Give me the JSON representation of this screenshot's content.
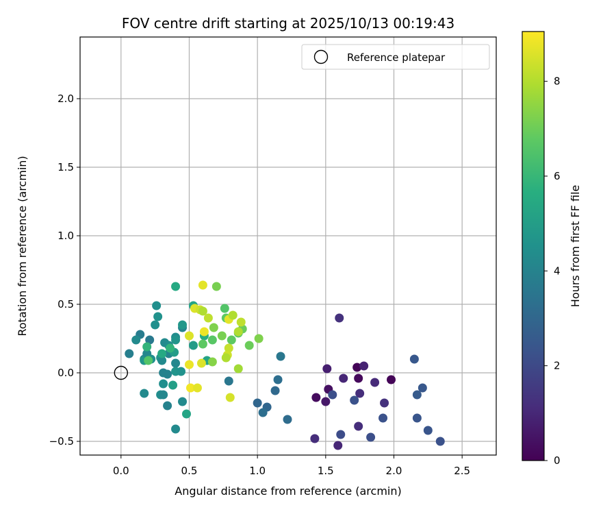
{
  "chart_data": {
    "type": "scatter",
    "title": "FOV centre drift starting at 2025/10/13 00:19:43",
    "xlabel": "Angular distance from reference (arcmin)",
    "ylabel": "Rotation from reference (arcmin)",
    "xlim": [
      -0.3,
      2.75
    ],
    "ylim": [
      -0.6,
      2.45
    ],
    "xticks": [
      0.0,
      0.5,
      1.0,
      1.5,
      2.0,
      2.5
    ],
    "xtick_labels": [
      "0.0",
      "0.5",
      "1.0",
      "1.5",
      "2.0",
      "2.5"
    ],
    "yticks": [
      -0.5,
      0.0,
      0.5,
      1.0,
      1.5,
      2.0
    ],
    "ytick_labels": [
      "−0.5",
      "0.0",
      "0.5",
      "1.0",
      "1.5",
      "2.0"
    ],
    "grid": true,
    "legend": {
      "position": "top-right",
      "entries": [
        "Reference platepar"
      ]
    },
    "reference_point": {
      "x": 0.0,
      "y": 0.0,
      "label": "Reference platepar"
    },
    "colorbar": {
      "label": "Hours from first FF file",
      "colormap": "viridis",
      "range": [
        0,
        9.05
      ],
      "ticks": [
        0,
        2,
        4,
        6,
        8
      ],
      "tick_labels": [
        "0",
        "2",
        "4",
        "6",
        "8"
      ]
    },
    "points": [
      {
        "x": 1.6,
        "y": 0.4,
        "h": 1.3
      },
      {
        "x": 1.51,
        "y": 0.03,
        "h": 0.8
      },
      {
        "x": 1.52,
        "y": -0.12,
        "h": 0.4
      },
      {
        "x": 1.43,
        "y": -0.18,
        "h": 0.3
      },
      {
        "x": 1.5,
        "y": -0.21,
        "h": 0.6
      },
      {
        "x": 1.55,
        "y": -0.16,
        "h": 2.2
      },
      {
        "x": 1.63,
        "y": -0.04,
        "h": 1.0
      },
      {
        "x": 1.73,
        "y": 0.04,
        "h": 0.1
      },
      {
        "x": 1.78,
        "y": 0.05,
        "h": 0.9
      },
      {
        "x": 1.74,
        "y": -0.04,
        "h": 0.2
      },
      {
        "x": 1.75,
        "y": -0.15,
        "h": 1.2
      },
      {
        "x": 1.71,
        "y": -0.2,
        "h": 2.3
      },
      {
        "x": 1.86,
        "y": -0.07,
        "h": 1.1
      },
      {
        "x": 1.98,
        "y": -0.05,
        "h": 0.1
      },
      {
        "x": 1.93,
        "y": -0.22,
        "h": 1.3
      },
      {
        "x": 1.74,
        "y": -0.39,
        "h": 1.2
      },
      {
        "x": 1.83,
        "y": -0.47,
        "h": 2.2
      },
      {
        "x": 1.92,
        "y": -0.33,
        "h": 2.3
      },
      {
        "x": 1.61,
        "y": -0.45,
        "h": 2.1
      },
      {
        "x": 1.42,
        "y": -0.48,
        "h": 1.2
      },
      {
        "x": 1.59,
        "y": -0.53,
        "h": 1.0
      },
      {
        "x": 2.15,
        "y": 0.1,
        "h": 2.5
      },
      {
        "x": 2.21,
        "y": -0.11,
        "h": 2.5
      },
      {
        "x": 2.17,
        "y": -0.16,
        "h": 2.6
      },
      {
        "x": 2.17,
        "y": -0.33,
        "h": 2.4
      },
      {
        "x": 2.25,
        "y": -0.42,
        "h": 2.4
      },
      {
        "x": 2.34,
        "y": -0.5,
        "h": 2.3
      },
      {
        "x": 1.17,
        "y": 0.12,
        "h": 3.6
      },
      {
        "x": 1.15,
        "y": -0.05,
        "h": 3.3
      },
      {
        "x": 1.13,
        "y": -0.13,
        "h": 3.1
      },
      {
        "x": 1.0,
        "y": -0.22,
        "h": 3.0
      },
      {
        "x": 1.07,
        "y": -0.25,
        "h": 3.0
      },
      {
        "x": 1.04,
        "y": -0.29,
        "h": 3.3
      },
      {
        "x": 1.22,
        "y": -0.34,
        "h": 3.2
      },
      {
        "x": 0.79,
        "y": -0.06,
        "h": 3.6
      },
      {
        "x": 0.06,
        "y": 0.14,
        "h": 3.9
      },
      {
        "x": 0.14,
        "y": 0.28,
        "h": 3.8
      },
      {
        "x": 0.11,
        "y": 0.24,
        "h": 4.3
      },
      {
        "x": 0.17,
        "y": 0.1,
        "h": 4.0
      },
      {
        "x": 0.17,
        "y": 0.09,
        "h": 4.8
      },
      {
        "x": 0.21,
        "y": 0.24,
        "h": 3.7
      },
      {
        "x": 0.26,
        "y": 0.49,
        "h": 4.5
      },
      {
        "x": 0.27,
        "y": 0.41,
        "h": 4.6
      },
      {
        "x": 0.25,
        "y": 0.35,
        "h": 4.5
      },
      {
        "x": 0.19,
        "y": 0.14,
        "h": 4.2
      },
      {
        "x": 0.22,
        "y": 0.1,
        "h": 4.5
      },
      {
        "x": 0.29,
        "y": 0.11,
        "h": 4.7
      },
      {
        "x": 0.3,
        "y": 0.09,
        "h": 4.3
      },
      {
        "x": 0.31,
        "y": 0.0,
        "h": 4.0
      },
      {
        "x": 0.32,
        "y": 0.22,
        "h": 4.3
      },
      {
        "x": 0.35,
        "y": 0.14,
        "h": 4.1
      },
      {
        "x": 0.3,
        "y": 0.14,
        "h": 5.5
      },
      {
        "x": 0.35,
        "y": 0.2,
        "h": 4.4
      },
      {
        "x": 0.31,
        "y": -0.08,
        "h": 4.5
      },
      {
        "x": 0.34,
        "y": -0.01,
        "h": 4.0
      },
      {
        "x": 0.29,
        "y": -0.16,
        "h": 4.4
      },
      {
        "x": 0.31,
        "y": -0.16,
        "h": 4.2
      },
      {
        "x": 0.34,
        "y": -0.24,
        "h": 4.0
      },
      {
        "x": 0.17,
        "y": -0.15,
        "h": 4.3
      },
      {
        "x": 0.4,
        "y": 0.07,
        "h": 4.2
      },
      {
        "x": 0.4,
        "y": 0.01,
        "h": 4.7
      },
      {
        "x": 0.39,
        "y": 0.15,
        "h": 5.0
      },
      {
        "x": 0.4,
        "y": 0.26,
        "h": 4.4
      },
      {
        "x": 0.4,
        "y": 0.24,
        "h": 4.7
      },
      {
        "x": 0.45,
        "y": 0.33,
        "h": 4.1
      },
      {
        "x": 0.45,
        "y": 0.35,
        "h": 4.8
      },
      {
        "x": 0.44,
        "y": 0.01,
        "h": 4.6
      },
      {
        "x": 0.38,
        "y": -0.09,
        "h": 5.1
      },
      {
        "x": 0.45,
        "y": -0.21,
        "h": 4.3
      },
      {
        "x": 0.48,
        "y": -0.3,
        "h": 5.3
      },
      {
        "x": 0.4,
        "y": -0.41,
        "h": 4.3
      },
      {
        "x": 0.4,
        "y": 0.63,
        "h": 5.5
      },
      {
        "x": 0.53,
        "y": 0.49,
        "h": 5.3
      },
      {
        "x": 0.53,
        "y": 0.2,
        "h": 5.0
      },
      {
        "x": 0.61,
        "y": 0.27,
        "h": 5.6
      },
      {
        "x": 0.63,
        "y": 0.09,
        "h": 5.3
      },
      {
        "x": 0.19,
        "y": 0.19,
        "h": 5.9
      },
      {
        "x": 0.2,
        "y": 0.09,
        "h": 6.6
      },
      {
        "x": 0.36,
        "y": 0.18,
        "h": 5.9
      },
      {
        "x": 0.6,
        "y": 0.21,
        "h": 6.8
      },
      {
        "x": 0.67,
        "y": 0.24,
        "h": 6.7
      },
      {
        "x": 0.68,
        "y": 0.33,
        "h": 7.3
      },
      {
        "x": 0.7,
        "y": 0.63,
        "h": 7.2
      },
      {
        "x": 0.67,
        "y": 0.08,
        "h": 7.4
      },
      {
        "x": 0.74,
        "y": 0.27,
        "h": 7.2
      },
      {
        "x": 0.76,
        "y": 0.47,
        "h": 6.6
      },
      {
        "x": 0.77,
        "y": 0.4,
        "h": 6.8
      },
      {
        "x": 0.81,
        "y": 0.24,
        "h": 6.8
      },
      {
        "x": 0.86,
        "y": 0.29,
        "h": 6.8
      },
      {
        "x": 0.89,
        "y": 0.32,
        "h": 7.0
      },
      {
        "x": 0.94,
        "y": 0.2,
        "h": 7.0
      },
      {
        "x": 1.01,
        "y": 0.25,
        "h": 7.3
      },
      {
        "x": 0.86,
        "y": 0.03,
        "h": 7.8
      },
      {
        "x": 0.6,
        "y": 0.64,
        "h": 8.7
      },
      {
        "x": 0.54,
        "y": 0.47,
        "h": 8.6
      },
      {
        "x": 0.58,
        "y": 0.46,
        "h": 8.4
      },
      {
        "x": 0.6,
        "y": 0.45,
        "h": 8.0
      },
      {
        "x": 0.64,
        "y": 0.4,
        "h": 8.2
      },
      {
        "x": 0.79,
        "y": 0.39,
        "h": 8.7
      },
      {
        "x": 0.82,
        "y": 0.42,
        "h": 8.0
      },
      {
        "x": 0.88,
        "y": 0.37,
        "h": 8.2
      },
      {
        "x": 0.86,
        "y": 0.3,
        "h": 8.0
      },
      {
        "x": 0.61,
        "y": 0.3,
        "h": 8.8
      },
      {
        "x": 0.5,
        "y": 0.27,
        "h": 8.6
      },
      {
        "x": 0.79,
        "y": 0.18,
        "h": 8.3
      },
      {
        "x": 0.78,
        "y": 0.13,
        "h": 8.4
      },
      {
        "x": 0.77,
        "y": 0.11,
        "h": 8.0
      },
      {
        "x": 0.59,
        "y": 0.07,
        "h": 8.6
      },
      {
        "x": 0.5,
        "y": 0.06,
        "h": 8.8
      },
      {
        "x": 0.51,
        "y": -0.11,
        "h": 8.9
      },
      {
        "x": 0.56,
        "y": -0.11,
        "h": 8.7
      },
      {
        "x": 0.8,
        "y": -0.18,
        "h": 8.5
      }
    ]
  }
}
